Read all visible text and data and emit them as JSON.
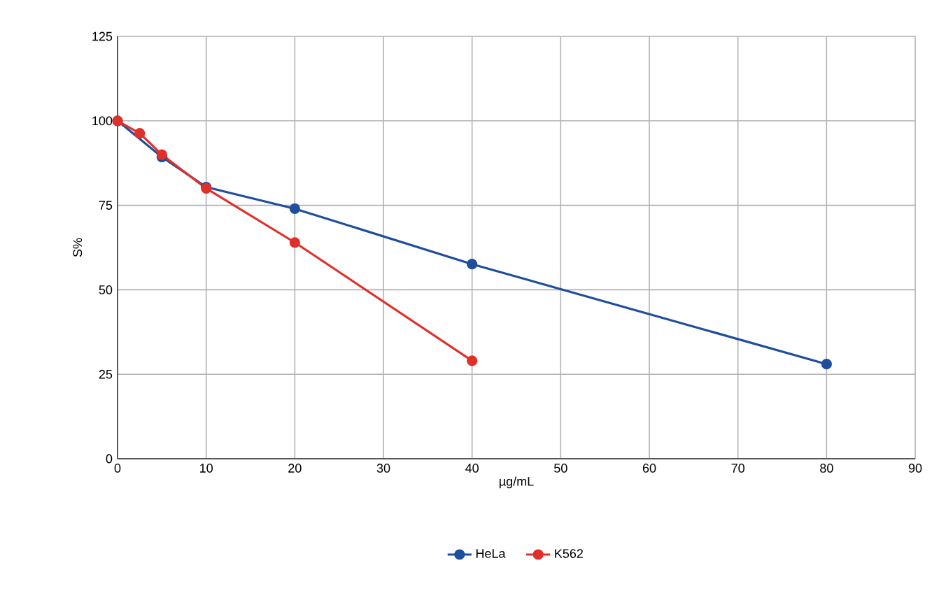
{
  "chart_data": {
    "type": "line",
    "xlabel": "µg/mL",
    "ylabel": "S%",
    "xlim": [
      0,
      90
    ],
    "ylim": [
      0,
      125
    ],
    "xticks": [
      0,
      10,
      20,
      30,
      40,
      50,
      60,
      70,
      80,
      90
    ],
    "yticks": [
      0,
      25,
      50,
      75,
      100,
      125
    ],
    "grid": true,
    "legend": "bottom",
    "marker": "circle",
    "series": [
      {
        "name": "HeLa",
        "color": "#1f4e9c",
        "x": [
          0,
          5,
          10,
          20,
          40,
          80
        ],
        "values": [
          100,
          89.3,
          80.4,
          74,
          57.6,
          28
        ]
      },
      {
        "name": "K562",
        "color": "#e0302a",
        "x": [
          0,
          2.5,
          5,
          10,
          20,
          40
        ],
        "values": [
          100,
          96.3,
          90,
          80,
          64,
          29
        ]
      }
    ]
  }
}
